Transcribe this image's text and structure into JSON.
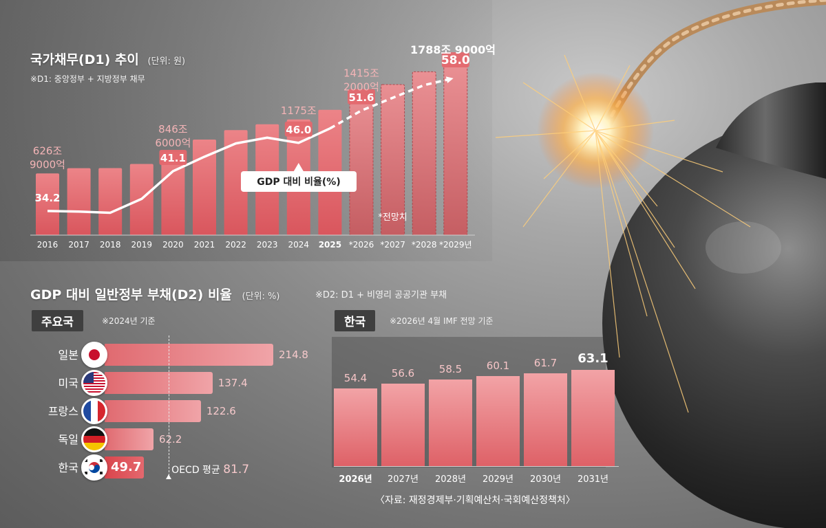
{
  "chart_data": [
    {
      "type": "bar",
      "title": "국가채무(D1) 추이",
      "unit_note": "(단위: 원)",
      "subtitle": "※D1: 중앙정부 + 지방정부 채무",
      "categories": [
        "2016",
        "2017",
        "2018",
        "2019",
        "2020",
        "2021",
        "2022",
        "2023",
        "2024",
        "2025",
        "*2026",
        "*2027",
        "*2028",
        "*2029년"
      ],
      "bold_category_index": 9,
      "forecast_start_index": 10,
      "forecast_note": "*전망치",
      "series": [
        {
          "values": [
            626.9,
            680.5,
            680.7,
            723.2,
            846.6,
            970.7,
            1067.4,
            1126.7,
            1175.2,
            1273.3,
            1415.2,
            1530.0,
            1660.0,
            1788.9
          ]
        },
        {
          "name": "GDP 대비 비율(%)",
          "type": "line",
          "values": [
            34.2,
            34.1,
            33.9,
            36.3,
            41.1,
            43.6,
            45.9,
            46.9,
            46.0,
            48.5,
            51.6,
            53.8,
            56.0,
            58.0
          ]
        }
      ],
      "bar_labels": [
        {
          "index": 0,
          "lines": [
            "626조",
            "9000억"
          ]
        },
        {
          "index": 4,
          "lines": [
            "846조",
            "6000억"
          ]
        },
        {
          "index": 8,
          "lines": [
            "1175조"
          ]
        },
        {
          "index": 10,
          "lines": [
            "1415조",
            "2000억"
          ]
        },
        {
          "index": 13,
          "lines": [
            "1788조 9000억"
          ]
        }
      ],
      "line_labels": [
        {
          "index": 0,
          "text": "34.2"
        },
        {
          "index": 4,
          "text": "41.1"
        },
        {
          "index": 8,
          "text": "46.0"
        },
        {
          "index": 10,
          "text": "51.6"
        },
        {
          "index": 13,
          "text": "58.0"
        }
      ],
      "legend": "GDP 대비 비율(%)",
      "ylim": [
        0,
        1900
      ]
    },
    {
      "type": "bar",
      "orientation": "horizontal",
      "title": "GDP 대비 일반정부 부채(D2) 비율",
      "unit_note": "(단위: %)",
      "definition_note": "※D2: D1 + 비영리 공공기관 부채",
      "group_tag": "주요국",
      "group_note": "※2024년 기준",
      "categories": [
        "일본",
        "미국",
        "프랑스",
        "독일",
        "한국"
      ],
      "values": [
        214.8,
        137.4,
        122.6,
        62.2,
        49.7
      ],
      "value_labels": [
        "214.8",
        "137.4",
        "122.6",
        "62.2",
        "49.7"
      ],
      "flags": [
        "japan-flag",
        "usa-flag",
        "france-flag",
        "germany-flag",
        "korea-flag"
      ],
      "highlight_index": 4,
      "reference_line": {
        "label": "OECD 평균",
        "value": 81.7,
        "value_label": "81.7"
      },
      "xlim": [
        0,
        240
      ]
    },
    {
      "type": "bar",
      "title": "한국",
      "note": "※2026년 4월 IMF 전망 기준",
      "categories": [
        "2026년",
        "2027년",
        "2028년",
        "2029년",
        "2030년",
        "2031년"
      ],
      "values": [
        54.4,
        56.6,
        58.5,
        60.1,
        61.7,
        63.1
      ],
      "value_labels": [
        "54.4",
        "56.6",
        "58.5",
        "60.1",
        "61.7",
        "63.1"
      ],
      "highlight_index": 5,
      "bold_category_index": 0
    }
  ],
  "source": "〈자료: 재정경제부·기획예산처·국회예산정책처〉",
  "colors": {
    "bar_main": "#e4686e",
    "bar_light": "#f2a4a7",
    "label_pink": "#f3b4b6",
    "tag_bg": "#3f3f3f",
    "line": "#ffffff"
  }
}
